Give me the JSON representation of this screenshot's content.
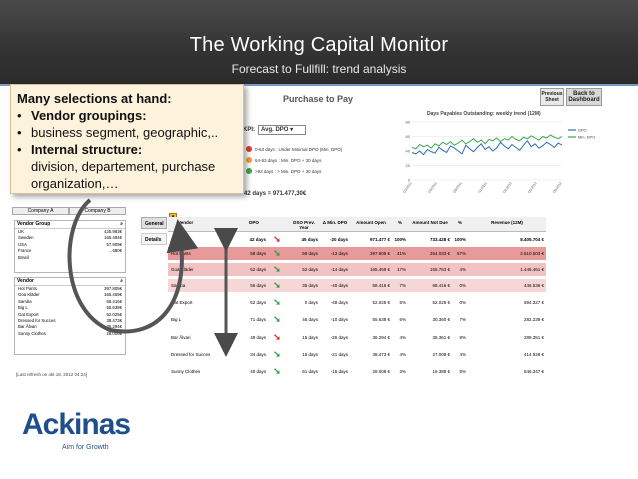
{
  "slide": {
    "title": "The Working Capital Monitor",
    "subtitle": "Forecast to Fullfill: trend analysis"
  },
  "callout": {
    "heading": "Many selections at hand:",
    "items": [
      {
        "label": "Vendor groupings:",
        "detail": "business segment, geographic,.."
      },
      {
        "label": "Internal structure:",
        "detail": "division, departement, purchase organization,…"
      }
    ]
  },
  "dashboard": {
    "title": "Purchase to Pay",
    "buttons": {
      "previous": "Previous Sheet",
      "back": "Back to Dashboard"
    },
    "kpi_label": "KPI:",
    "kpi_value": "Avg. DPO",
    "legend": [
      {
        "text": "0-63 days : Under Minimal DPO (Min. DPO)",
        "color": "#e03b2f"
      },
      {
        "text": "64-93 days : Min. DPO + 30 days",
        "color": "#f0a030"
      },
      {
        "text": ">93 days : > Min. DPO + 30 days",
        "color": "#3aa84a"
      }
    ],
    "total": "42 days  =  971.477,30€",
    "tabs": [
      "Company A",
      "Company B"
    ],
    "vendor_group": {
      "header": "Vendor Group",
      "rows": [
        {
          "name": "UK",
          "value": "425.983€"
        },
        {
          "name": "Sweden",
          "value": "165.494€"
        },
        {
          "name": "USA",
          "value": "57.909€"
        },
        {
          "name": "France",
          "value": "…680€"
        },
        {
          "name": "Brasil",
          "value": ""
        }
      ]
    },
    "vendor": {
      "header": "Vendor",
      "rows": [
        {
          "name": "Hot Pants",
          "value": "397.805€"
        },
        {
          "name": "Goa Kläder",
          "value": "165.459€"
        },
        {
          "name": "Samba",
          "value": "68.416€"
        },
        {
          "name": "Big L",
          "value": "55.638€"
        },
        {
          "name": "Gat Export",
          "value": "52.025€"
        },
        {
          "name": "Dressed for Succes",
          "value": "38.473€"
        },
        {
          "name": "Bar Ålvari",
          "value": "36.294€"
        },
        {
          "name": "Sunny Clothes",
          "value": "28.008€"
        }
      ]
    },
    "refresh": "[Last refresh on okt 18, 2012 04:24]",
    "side_tabs": [
      "General",
      "Details"
    ],
    "columns": [
      "Vendor",
      "DPO",
      "",
      "DSO Prev. Year",
      "Δ Min. DPO",
      "Amount Open",
      "%",
      "Amount Not Due",
      "%",
      "Revenue (12M)"
    ],
    "rows": [
      {
        "vendor": "",
        "dpo": "42 days",
        "arrow": "red",
        "dso": "45 days",
        "delta": "-20 days",
        "open": "971.477 €",
        "pct1": "100%",
        "notdue": "733.428 €",
        "pct2": "100%",
        "rev": "8.405.704 €",
        "bg": "#ffffff",
        "bold": true
      },
      {
        "vendor": "Hot Pants",
        "dpo": "58 days",
        "arrow": "green",
        "dso": "58 days",
        "delta": "-13 days",
        "open": "397.805 €",
        "pct1": "41%",
        "notdue": "254.033 €",
        "pct2": "57%",
        "rev": "2.510.503 €",
        "bg": "#e79a9a",
        "bold": false
      },
      {
        "vendor": "Goa Kläder",
        "dpo": "52 days",
        "arrow": "green",
        "dso": "52 days",
        "delta": "-14 days",
        "open": "165.459 €",
        "pct1": "17%",
        "notdue": "155.753 €",
        "pct2": "4%",
        "rev": "1.445.461 €",
        "bg": "#f3c3c3",
        "bold": false
      },
      {
        "vendor": "Samba",
        "dpo": "56 days",
        "arrow": "green",
        "dso": "35 days",
        "delta": "-40 days",
        "open": "68.416 €",
        "pct1": "7%",
        "notdue": "68.416 €",
        "pct2": "0%",
        "rev": "446.536 €",
        "bg": "#f6d6d6",
        "bold": false
      },
      {
        "vendor": "Gat Export",
        "dpo": "52 days",
        "arrow": "green",
        "dso": "0 days",
        "delta": "-48 days",
        "open": "52.025 €",
        "pct1": "5%",
        "notdue": "52.025 €",
        "pct2": "0%",
        "rev": "594.327 €",
        "bg": "#ffffff",
        "bold": false
      },
      {
        "vendor": "Big L",
        "dpo": "71 days",
        "arrow": "green",
        "dso": "46 days",
        "delta": "-10 days",
        "open": "55.638 €",
        "pct1": "6%",
        "notdue": "30.360 €",
        "pct2": "7%",
        "rev": "282.239 €",
        "bg": "#ffffff",
        "bold": false
      },
      {
        "vendor": "Bar Ålvari",
        "dpo": "48 days",
        "arrow": "red",
        "dso": "15 days",
        "delta": "-26 days",
        "open": "36.294 €",
        "pct1": "4%",
        "notdue": "35.361 €",
        "pct2": "8%",
        "rev": "289.351 €",
        "bg": "#ffffff",
        "bold": false
      },
      {
        "vendor": "Dressed for Succes",
        "dpo": "34 days",
        "arrow": "green",
        "dso": "15 days",
        "delta": "-21 days",
        "open": "38.473 €",
        "pct1": "4%",
        "notdue": "27.008 €",
        "pct2": "4%",
        "rev": "414.928 €",
        "bg": "#ffffff",
        "bold": false
      },
      {
        "vendor": "Sunny Clothes",
        "dpo": "40 days",
        "arrow": "green",
        "dso": "61 days",
        "delta": "-15 days",
        "open": "28.008 €",
        "pct1": "3%",
        "notdue": "16.388 €",
        "pct2": "5%",
        "rev": "546.347 €",
        "bg": "#ffffff",
        "bold": false
      }
    ]
  },
  "chart_data": {
    "type": "line",
    "title": "Days Payables Outstanding: weekly trend (12M)",
    "ylim": [
      0,
      80
    ],
    "yticks": [
      0,
      20,
      40,
      60,
      80
    ],
    "xtick_labels": [
      "1/02/2011",
      "1/05/2011",
      "1/08/2011",
      "1/11/2011",
      "1/02/2012",
      "1/05/2012",
      "1/08/2012"
    ],
    "series": [
      {
        "name": "DPO",
        "color": "#2f6db5",
        "values": [
          38,
          36,
          40,
          35,
          42,
          39,
          37,
          45,
          41,
          38,
          47,
          44,
          40,
          36,
          48,
          43,
          39,
          45,
          50,
          42,
          46,
          40,
          44,
          52,
          47,
          43,
          49,
          45,
          41,
          48,
          54,
          46,
          50,
          44,
          47,
          52,
          49,
          45,
          51,
          48
        ]
      },
      {
        "name": "Min. DPO",
        "color": "#3aa84a",
        "values": [
          45,
          43,
          49,
          46,
          48,
          44,
          50,
          47,
          52,
          49,
          53,
          48,
          51,
          55,
          50,
          53,
          57,
          52,
          55,
          50,
          56,
          54,
          58,
          53,
          57,
          55,
          60,
          56,
          54,
          59,
          57,
          61,
          58,
          55,
          60,
          58,
          62,
          59,
          57,
          60
        ]
      }
    ]
  },
  "footer": {
    "brand": "Ackinas",
    "tagline": "Aim for Growth"
  }
}
